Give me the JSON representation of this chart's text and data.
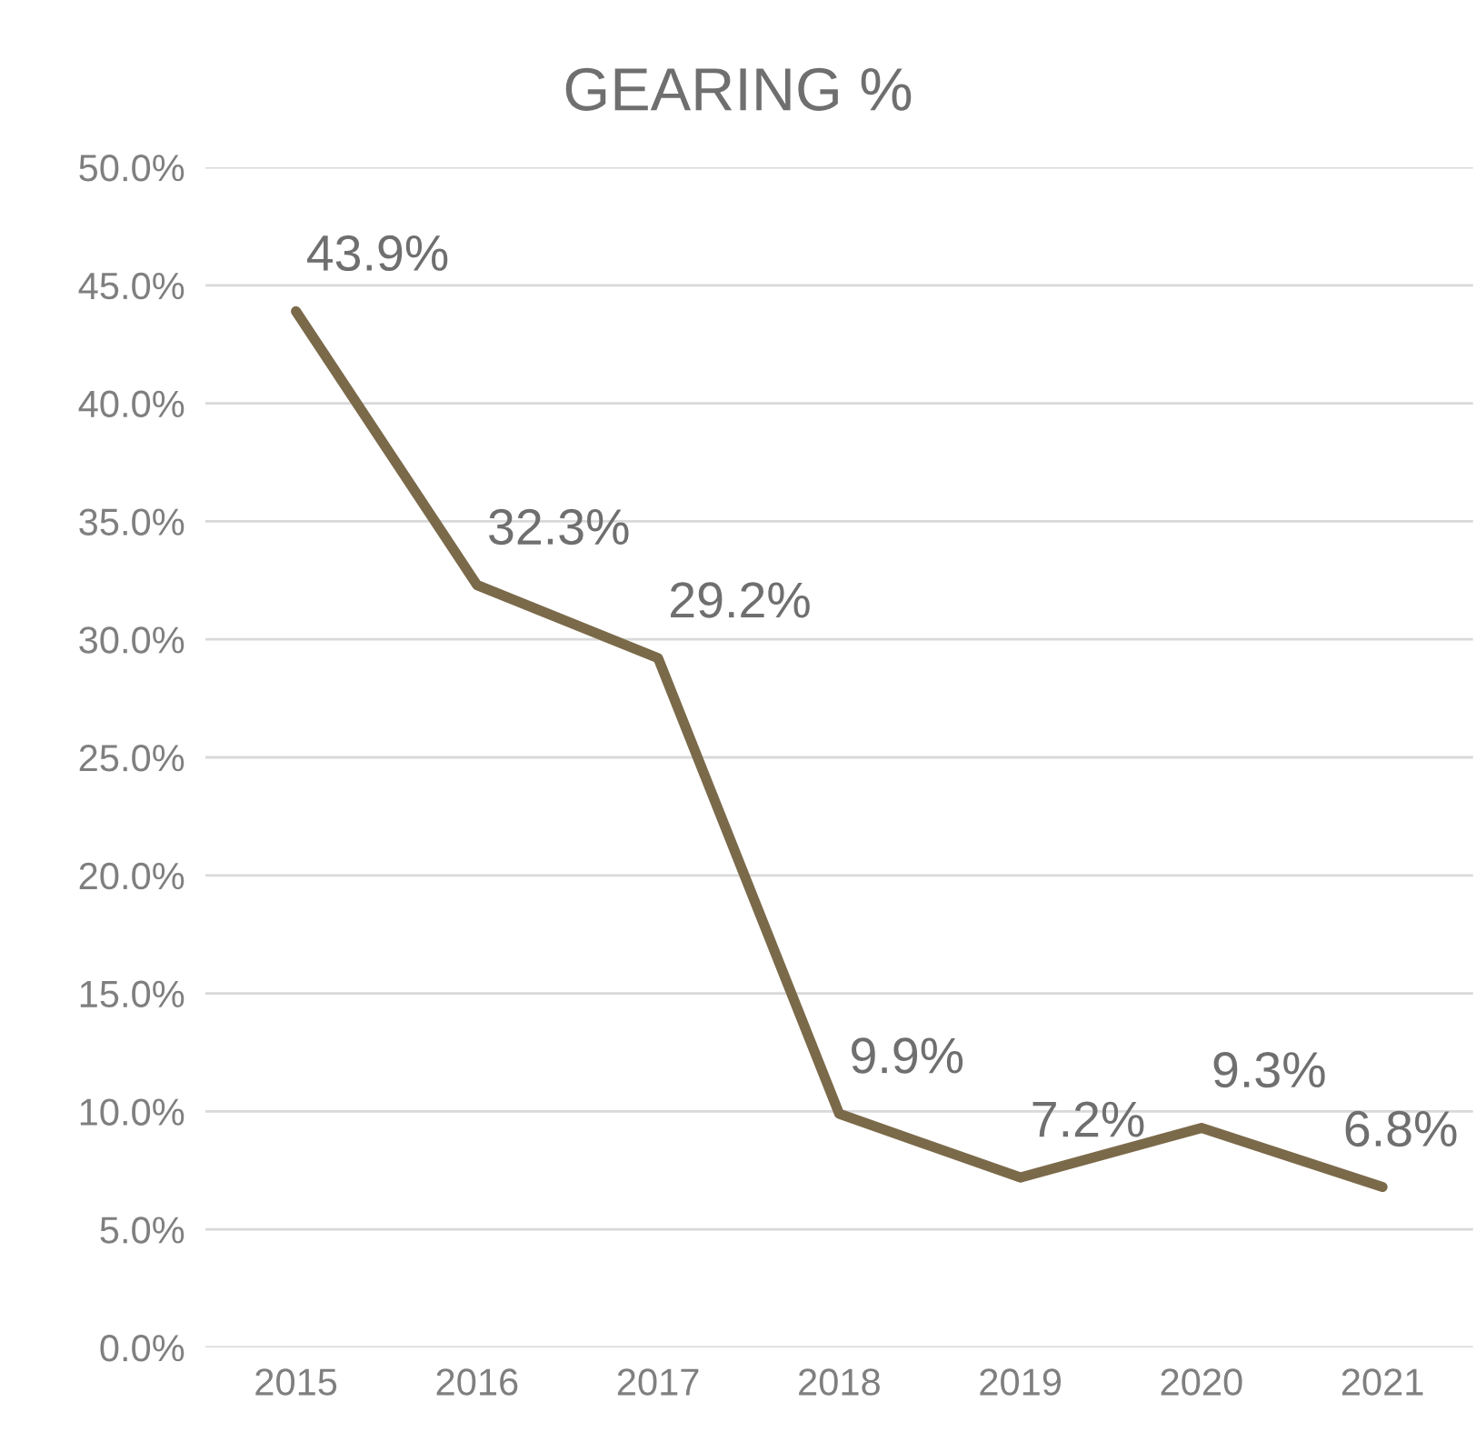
{
  "chart_data": {
    "type": "line",
    "title": "GEARING %",
    "categories": [
      "2015",
      "2016",
      "2017",
      "2018",
      "2019",
      "2020",
      "2021"
    ],
    "series": [
      {
        "color": "#7b6a4a",
        "values": [
          43.9,
          32.3,
          29.2,
          9.9,
          7.2,
          9.3,
          6.8
        ],
        "value_labels": [
          "43.9%",
          "32.3%",
          "29.2%",
          "9.9%",
          "7.2%",
          "9.3%",
          "6.8%"
        ]
      }
    ],
    "ylim": [
      0,
      50
    ],
    "yticks": [
      {
        "value": 0,
        "label": "0.0%"
      },
      {
        "value": 5,
        "label": "5.0%"
      },
      {
        "value": 10,
        "label": "10.0%"
      },
      {
        "value": 15,
        "label": "15.0%"
      },
      {
        "value": 20,
        "label": "20.0%"
      },
      {
        "value": 25,
        "label": "25.0%"
      },
      {
        "value": 30,
        "label": "30.0%"
      },
      {
        "value": 35,
        "label": "35.0%"
      },
      {
        "value": 40,
        "label": "40.0%"
      },
      {
        "value": 45,
        "label": "45.0%"
      },
      {
        "value": 50,
        "label": "50.0%"
      }
    ],
    "grid": "y",
    "marker": "none",
    "line_style": "solid"
  }
}
